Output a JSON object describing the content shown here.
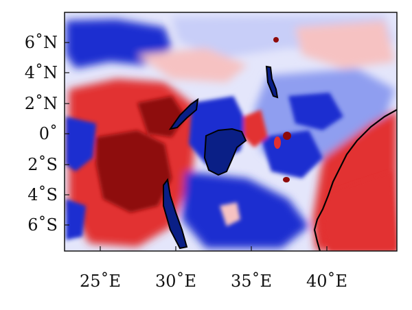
{
  "map": {
    "lon_range": [
      23.0,
      44.0
    ],
    "lat_range": [
      -7.6,
      7.6
    ],
    "x_ticks": [
      {
        "lon": 25,
        "label": "25˚E"
      },
      {
        "lon": 30,
        "label": "30˚E"
      },
      {
        "lon": 35,
        "label": "35˚E"
      },
      {
        "lon": 40,
        "label": "40˚E"
      }
    ],
    "y_ticks": [
      {
        "lat": 6,
        "label": "6˚N"
      },
      {
        "lat": 4,
        "label": "4˚N"
      },
      {
        "lat": 2,
        "label": "2˚N"
      },
      {
        "lat": 0,
        "label": "0˚"
      },
      {
        "lat": -2,
        "label": "2˚S"
      },
      {
        "lat": -4,
        "label": "4˚S"
      },
      {
        "lat": -6,
        "label": "6˚S"
      }
    ],
    "colors": {
      "background": "#e4e6fb",
      "strong_blue": "#1f2fd0",
      "deep_blue": "#0a1f86",
      "light_blue": "#8f9ef0",
      "pale_blue": "#c8cef8",
      "pale_red": "#f6c2c2",
      "red": "#e23030",
      "deep_red": "#8e0a0a"
    }
  }
}
